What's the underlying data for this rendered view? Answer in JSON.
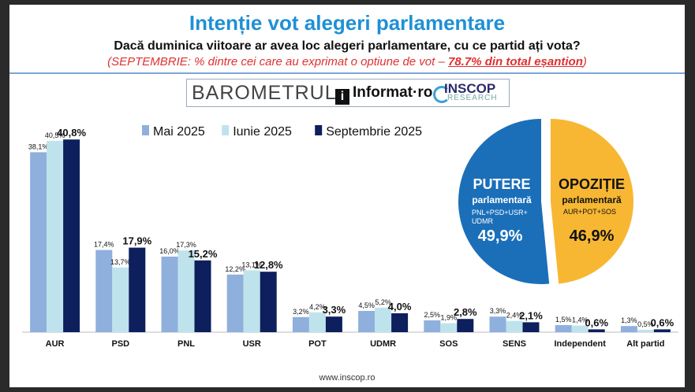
{
  "header": {
    "title": "Intenție vot alegeri parlamentare",
    "question": "Dacă duminica viitoare ar avea loc alegeri parlamentare, cu ce partid ați vota?",
    "note_prefix": "(SEPTEMBRIE: % dintre cei care au exprimat o optiune de vot – ",
    "note_bold": "78.7% din total eșantion",
    "note_suffix": ")"
  },
  "brand": {
    "barometer": "BAROMETRUL",
    "informat": "Informat·ro",
    "informat_mark": "i",
    "inscop": "INSCOP",
    "inscop_sub": "RESEARCH"
  },
  "footer": {
    "url": "www.inscop.ro"
  },
  "chart_data": [
    {
      "type": "bar",
      "title": "",
      "xlabel": "",
      "ylabel": "",
      "categories": [
        "AUR",
        "PSD",
        "PNL",
        "USR",
        "POT",
        "UDMR",
        "SOS",
        "SENS",
        "Independent",
        "Alt partid"
      ],
      "series": [
        {
          "name": "Mai 2025",
          "color": "#8fb0dc",
          "values": [
            38.1,
            17.4,
            16.0,
            12.2,
            3.2,
            4.5,
            2.5,
            3.3,
            1.5,
            1.3
          ],
          "labels": [
            "38,1%",
            "17,4%",
            "16,0%",
            "12,2%",
            "3,2%",
            "4,5%",
            "2,5%",
            "3,3%",
            "1,5%",
            "1,3%"
          ]
        },
        {
          "name": "Iunie 2025",
          "color": "#bfe3ec",
          "values": [
            40.5,
            13.7,
            17.3,
            13.1,
            4.2,
            5.2,
            1.9,
            2.4,
            1.4,
            0.5
          ],
          "labels": [
            "40,5%",
            "13,7%",
            "17,3%",
            "13,1%",
            "4,2%",
            "5,2%",
            "1,9%",
            "2,4%",
            "1,4%",
            "0,5%"
          ]
        },
        {
          "name": "Septembrie 2025",
          "color": "#0d1f5c",
          "values": [
            40.8,
            17.9,
            15.2,
            12.8,
            3.3,
            4.0,
            2.8,
            2.1,
            0.6,
            0.6
          ],
          "labels": [
            "40,8%",
            "17,9%",
            "15,2%",
            "12,8%",
            "3,3%",
            "4,0%",
            "2,8%",
            "2,1%",
            "0,6%",
            "0,6%"
          ]
        }
      ],
      "ylim": [
        0,
        42
      ],
      "grid": false,
      "legend_position": "top"
    },
    {
      "type": "pie",
      "slices": [
        {
          "title": "PUTERE",
          "subtitle": "parlamentară",
          "parties": "PNL+PSD+USR+UDMR",
          "parties_line1": "PNL+PSD+USR+",
          "parties_line2": "UDMR",
          "value": 49.9,
          "label": "49,9%",
          "color": "#1b6fb8"
        },
        {
          "title": "OPOZIȚIE",
          "subtitle": "parlamentară",
          "parties": "AUR+POT+SOS",
          "value": 46.9,
          "label": "46,9%",
          "color": "#f7b733"
        }
      ]
    }
  ]
}
